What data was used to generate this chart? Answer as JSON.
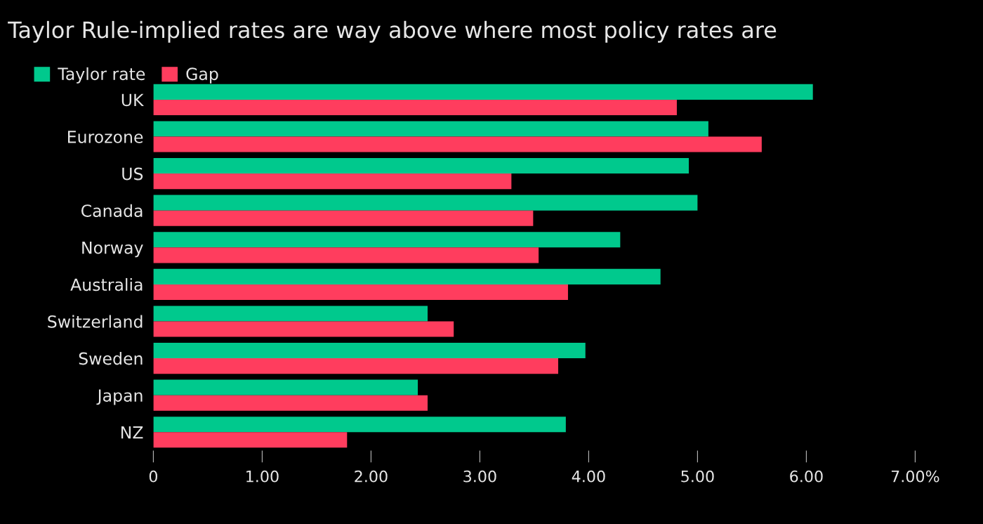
{
  "chart_data": {
    "type": "bar",
    "orientation": "horizontal",
    "title": "Taylor Rule-implied rates are way above where most policy rates are",
    "categories": [
      "UK",
      "Eurozone",
      "US",
      "Canada",
      "Norway",
      "Australia",
      "Switzerland",
      "Sweden",
      "Japan",
      "NZ"
    ],
    "series": [
      {
        "name": "Taylor rate",
        "color": "#00c98d",
        "values": [
          6.06,
          5.1,
          4.92,
          5.0,
          4.29,
          4.66,
          2.52,
          3.97,
          2.43,
          3.79
        ]
      },
      {
        "name": "Gap",
        "color": "#ff3d5e",
        "values": [
          4.81,
          5.59,
          3.29,
          3.49,
          3.54,
          3.81,
          2.76,
          3.72,
          2.52,
          1.78
        ]
      }
    ],
    "xlim": [
      0,
      7
    ],
    "xticks": [
      0,
      {
        "value": 1,
        "label": "1.00"
      },
      {
        "value": 2,
        "label": "2.00"
      },
      {
        "value": 3,
        "label": "3.00"
      },
      {
        "value": 4,
        "label": "4.00"
      },
      {
        "value": 5,
        "label": "5.00"
      },
      {
        "value": 6,
        "label": "6.00"
      },
      {
        "value": 7,
        "label": "7.00%"
      }
    ],
    "grid": false,
    "legend": "top left"
  }
}
